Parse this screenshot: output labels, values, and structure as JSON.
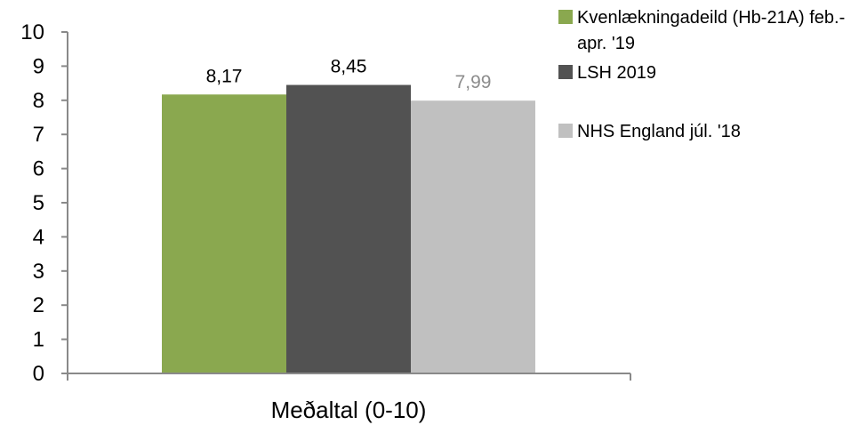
{
  "chart_data": {
    "type": "bar",
    "categories": [
      "Meðaltal (0-10)"
    ],
    "series": [
      {
        "name": "Kvenlækningadeild (Hb-21A) feb.-apr. '19",
        "values": [
          8.17
        ],
        "label": "8,17",
        "color": "#8aa84f",
        "label_color": "#000000"
      },
      {
        "name": "LSH 2019",
        "values": [
          8.45
        ],
        "label": "8,45",
        "color": "#525252",
        "label_color": "#000000"
      },
      {
        "name": "NHS England júl. '18",
        "values": [
          7.99
        ],
        "label": "7,99",
        "color": "#c0c0c0",
        "label_color": "#8c8c8c"
      }
    ],
    "yticks": [
      "0",
      "1",
      "2",
      "3",
      "4",
      "5",
      "6",
      "7",
      "8",
      "9",
      "10"
    ],
    "ylim": [
      0,
      10
    ],
    "grid": false,
    "legend_position": "top-right",
    "axis_color": "#898989"
  }
}
